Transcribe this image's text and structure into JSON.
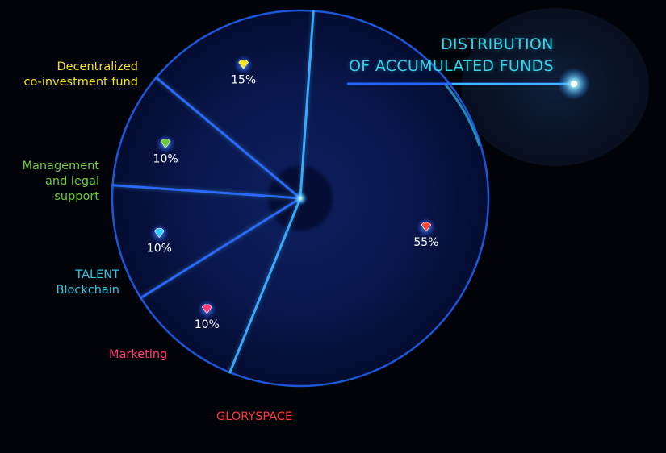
{
  "chart_data": {
    "type": "pie",
    "title": [
      "DISTRIBUTION",
      "OF ACCUMULATED FUNDS"
    ],
    "slices": [
      {
        "label": [
          "GLORYSPACE"
        ],
        "value": 55,
        "value_label": "55%",
        "color": "#ff3b3b",
        "gem_color": "#ff4a3a"
      },
      {
        "label": [
          "Marketing"
        ],
        "value": 10,
        "value_label": "10%",
        "color": "#ff3d78",
        "gem_color": "#ff3d78"
      },
      {
        "label": [
          "TALENT",
          "Blockchain"
        ],
        "value": 10,
        "value_label": "10%",
        "color": "#2ec7e0",
        "gem_color": "#2fc8ff"
      },
      {
        "label": [
          "Management",
          "and legal",
          "support"
        ],
        "value": 10,
        "value_label": "10%",
        "color": "#6dcc3c",
        "gem_color": "#6dcc3c"
      },
      {
        "label": [
          "Decentralized",
          "co-investment fund"
        ],
        "value": 15,
        "value_label": "15%",
        "color": "#f4e21c",
        "gem_color": "#f4e21c"
      }
    ]
  },
  "colors": {
    "background": "#020308",
    "title": "#37d2e6",
    "divider": "#2a68ff",
    "glow": "#4fd0ff"
  }
}
